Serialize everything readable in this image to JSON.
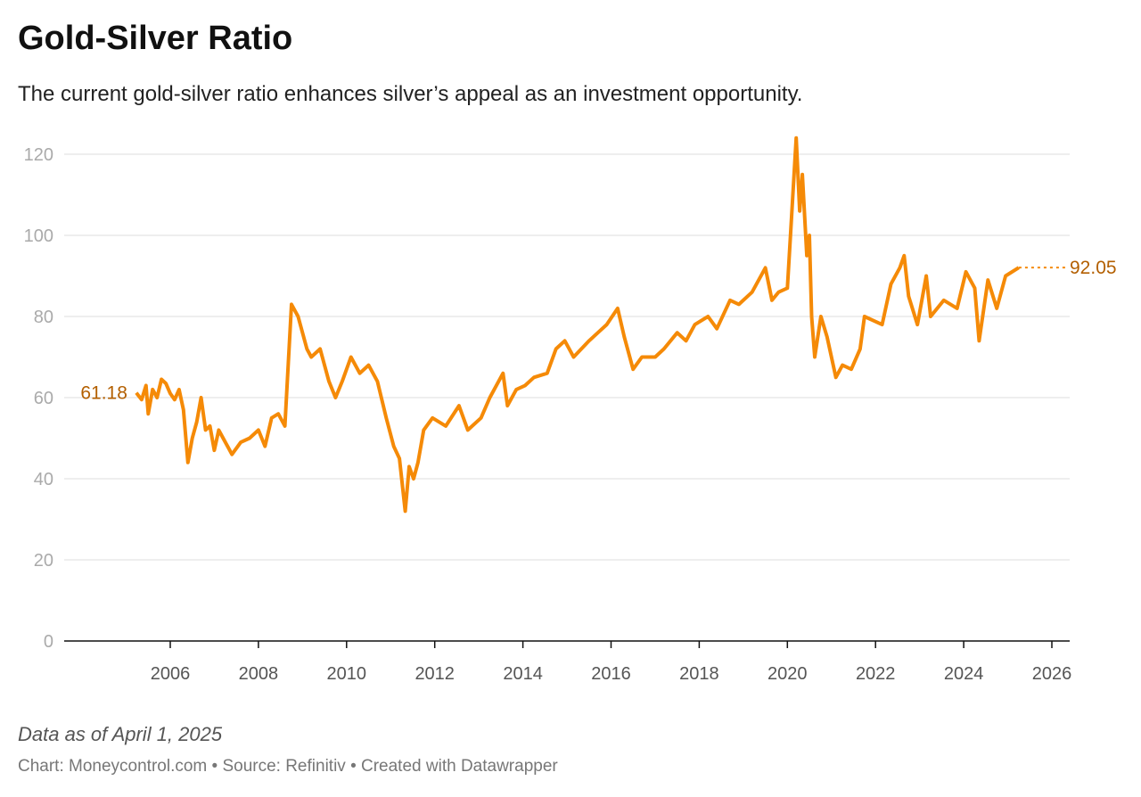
{
  "title": "Gold-Silver Ratio",
  "subtitle": "The current gold-silver ratio enhances silver’s appeal as an investment opportunity.",
  "note": "Data as of April 1, 2025",
  "credits": "Chart: Moneycontrol.com • Source: Refinitiv • Created with Datawrapper",
  "chart_data": {
    "type": "line",
    "title": "Gold-Silver Ratio",
    "xlabel": "",
    "ylabel": "",
    "xlim": [
      2003.6,
      2026.4
    ],
    "ylim": [
      0,
      125
    ],
    "grid": true,
    "line_color": "#f58a07",
    "label_color": "#b35f00",
    "y_ticks": [
      0,
      20,
      40,
      60,
      80,
      100,
      120
    ],
    "x_ticks": [
      2006,
      2008,
      2010,
      2012,
      2014,
      2016,
      2018,
      2020,
      2022,
      2024,
      2026
    ],
    "start_label": "61.18",
    "end_label": "92.05",
    "series": [
      {
        "x": [
          2005.23,
          2005.35,
          2005.45,
          2005.5,
          2005.6,
          2005.7,
          2005.8,
          2005.9,
          2006.0,
          2006.1,
          2006.2,
          2006.3,
          2006.4,
          2006.5,
          2006.6,
          2006.7,
          2006.8,
          2006.9,
          2007.0,
          2007.1,
          2007.2,
          2007.3,
          2007.4,
          2007.6,
          2007.8,
          2008.0,
          2008.15,
          2008.3,
          2008.45,
          2008.6,
          2008.75,
          2008.9,
          2009.1,
          2009.2,
          2009.4,
          2009.6,
          2009.75,
          2009.9,
          2010.1,
          2010.3,
          2010.5,
          2010.7,
          2010.9,
          2011.07,
          2011.2,
          2011.33,
          2011.42,
          2011.52,
          2011.62,
          2011.75,
          2011.95,
          2012.25,
          2012.55,
          2012.75,
          2013.05,
          2013.25,
          2013.55,
          2013.65,
          2013.85,
          2014.05,
          2014.25,
          2014.55,
          2014.75,
          2014.95,
          2015.15,
          2015.5,
          2015.7,
          2015.9,
          2016.15,
          2016.3,
          2016.5,
          2016.7,
          2017.0,
          2017.2,
          2017.5,
          2017.7,
          2017.9,
          2018.2,
          2018.4,
          2018.7,
          2018.9,
          2019.2,
          2019.5,
          2019.65,
          2019.8,
          2020.0,
          2020.2,
          2020.28,
          2020.34,
          2020.44,
          2020.5,
          2020.55,
          2020.62,
          2020.76,
          2020.9,
          2021.1,
          2021.25,
          2021.45,
          2021.65,
          2021.75,
          2021.95,
          2022.15,
          2022.35,
          2022.55,
          2022.65,
          2022.75,
          2022.95,
          2023.15,
          2023.25,
          2023.55,
          2023.85,
          2024.05,
          2024.25,
          2024.35,
          2024.55,
          2024.75,
          2024.95,
          2025.25
        ],
        "y": [
          61.18,
          59.5,
          63,
          56,
          62,
          60,
          64.5,
          63.5,
          61,
          59.5,
          62,
          57,
          44,
          50,
          54,
          60,
          52,
          53,
          47,
          52,
          50,
          48,
          46,
          49,
          50,
          52,
          48,
          55,
          56,
          53,
          83,
          80,
          72,
          70,
          72,
          64,
          60,
          64,
          70,
          66,
          68,
          64,
          55,
          48,
          45,
          32,
          43,
          40,
          44,
          52,
          55,
          53,
          58,
          52,
          55,
          60,
          66,
          58,
          62,
          63,
          65,
          66,
          72,
          74,
          70,
          74,
          76,
          78,
          82,
          75,
          67,
          70,
          70,
          72,
          76,
          74,
          78,
          80,
          77,
          84,
          83,
          86,
          92,
          84,
          86,
          87,
          124,
          106,
          115,
          95,
          100,
          80,
          70,
          80,
          75,
          65,
          68,
          67,
          72,
          80,
          79,
          78,
          88,
          92,
          95,
          85,
          78,
          90,
          80,
          84,
          82,
          91,
          87,
          74,
          89,
          82,
          90,
          92.05
        ]
      }
    ]
  }
}
